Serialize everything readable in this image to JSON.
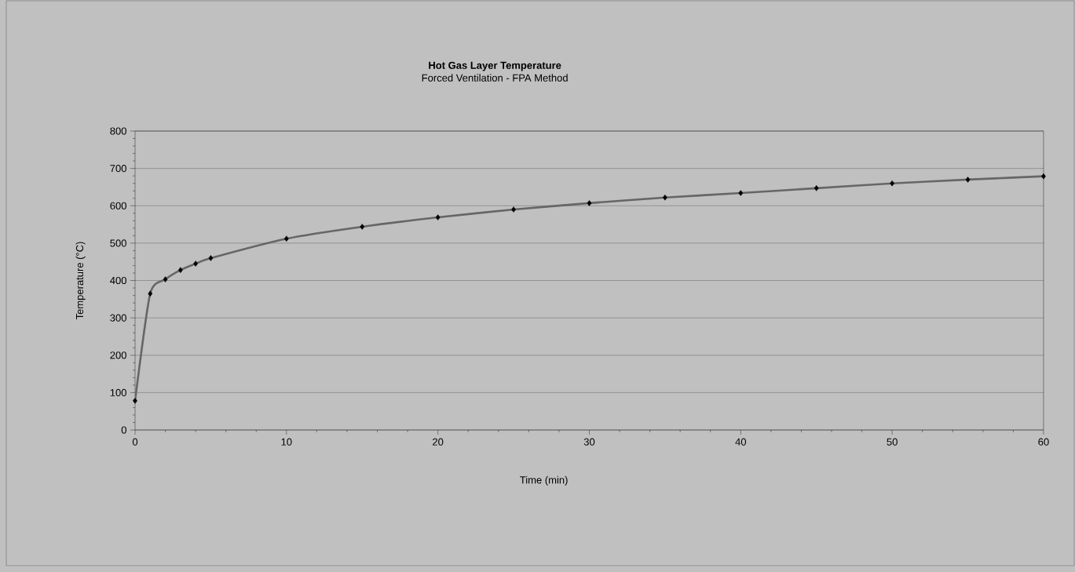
{
  "chart_data": {
    "type": "line",
    "title": "Hot Gas Layer Temperature",
    "subtitle": "Forced Ventilation - FPA Method",
    "xlabel": "Time (min)",
    "ylabel": "Temperature (°C)",
    "x": [
      0,
      1,
      2,
      3,
      4,
      5,
      10,
      15,
      20,
      25,
      30,
      35,
      40,
      45,
      50,
      55,
      60
    ],
    "series": [
      {
        "color": "#666666",
        "values": [
          78,
          365,
          403,
          428,
          445,
          460,
          512,
          544,
          569,
          590,
          607,
          622,
          634,
          647,
          660,
          670,
          679
        ]
      }
    ],
    "xlim": [
      0,
      60
    ],
    "xticks": [
      0,
      10,
      20,
      30,
      40,
      50,
      60
    ],
    "ylim": [
      0,
      800
    ],
    "yticks": [
      0,
      100,
      200,
      300,
      400,
      500,
      600,
      700,
      800
    ],
    "grid": "y",
    "marker": "diamond",
    "line_style": "solid"
  }
}
